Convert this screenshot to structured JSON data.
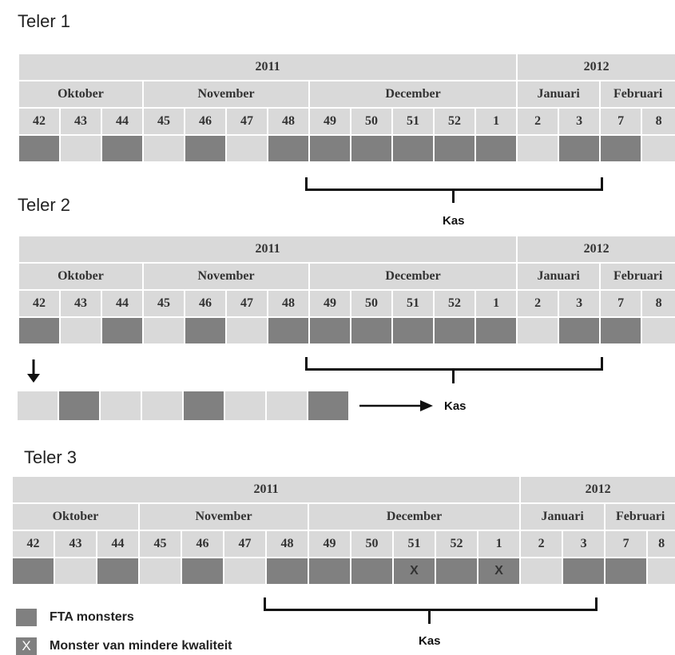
{
  "grids": [
    {
      "title": "Teler 1",
      "has_x": false
    },
    {
      "title": "Teler 2",
      "has_x": false
    },
    {
      "title": "Teler 3",
      "has_x": true
    }
  ],
  "years": [
    "2011",
    "2012"
  ],
  "months": [
    "Oktober",
    "November",
    "December",
    "Januari",
    "Februari"
  ],
  "weeks": [
    "42",
    "43",
    "44",
    "45",
    "46",
    "47",
    "48",
    "49",
    "50",
    "51",
    "52",
    "1",
    "2",
    "3",
    "7",
    "8"
  ],
  "sample_pattern": [
    "D",
    "L",
    "D",
    "L",
    "D",
    "L",
    "D",
    "D",
    "D",
    "D",
    "D",
    "D",
    "L",
    "D",
    "D",
    "L"
  ],
  "teler3_x_marks": {
    "weeks": [
      "51",
      "1"
    ],
    "mark": "X"
  },
  "strip_pattern": [
    "L",
    "D",
    "L",
    "L",
    "D",
    "L",
    "L",
    "D"
  ],
  "kas_label": "Kas",
  "legend": {
    "items": [
      {
        "mark": "",
        "label": "FTA monsters"
      },
      {
        "mark": "X",
        "label": "Monster van mindere kwaliteit"
      }
    ]
  },
  "colors": {
    "dark": "#808080",
    "light": "#d9d9d9"
  }
}
